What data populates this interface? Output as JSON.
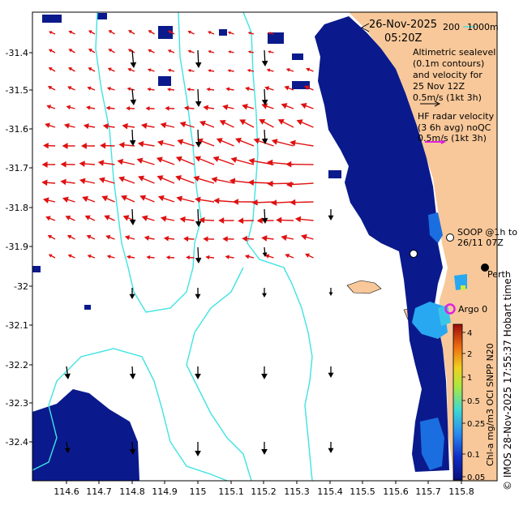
{
  "title": {
    "date": "26-Nov-2025",
    "time": "05:20Z"
  },
  "bathymetry_legend": {
    "depth_200": "200",
    "depth_1000": "1000m"
  },
  "altimetry_legend": {
    "line1": "Altimetric sealevel",
    "line2": "(0.1m contours)",
    "line3": "and velocity for",
    "line4": "25 Nov 12Z",
    "line5": "0.5m/s (1kt 3h)"
  },
  "hf_radar_legend": {
    "line1": "HF radar velocity",
    "line2": "(3 6h avg) noQC",
    "line3": "0.5m/s (1kt 3h)"
  },
  "soop_label": {
    "line1": "SOOP @1h to",
    "line2": "26/11 07Z"
  },
  "place_labels": {
    "perth": "Perth",
    "argo": "Argo 0"
  },
  "side_text": "© IMOS 28-Nov-2025 17:55:37 Hobart time",
  "colorbar": {
    "label": "Chl-a mg/m3 OCI SNPP N20",
    "ticks": [
      "4",
      "2",
      "1",
      "0.5",
      "0.25",
      "0.1",
      "0.05"
    ]
  },
  "axes": {
    "x_ticks": [
      "114.6",
      "114.7",
      "114.8",
      "114.9",
      "115",
      "115.1",
      "115.2",
      "115.3",
      "115.4",
      "115.5",
      "115.6",
      "115.7",
      "115.8"
    ],
    "y_ticks": [
      "-31.4",
      "-31.5",
      "-31.6",
      "-31.7",
      "-31.8",
      "-31.9",
      "-32",
      "-32.1",
      "-32.2",
      "-32.3",
      "-32.4"
    ]
  },
  "colors": {
    "land": "#f8c89a",
    "ocean": "#ffffff",
    "chl_dark": "#0a1a8c",
    "contour": "#3fe3e3",
    "hf_arrow": "#e01010",
    "alt_arrow": "#000000",
    "argo": "#e020e0"
  }
}
